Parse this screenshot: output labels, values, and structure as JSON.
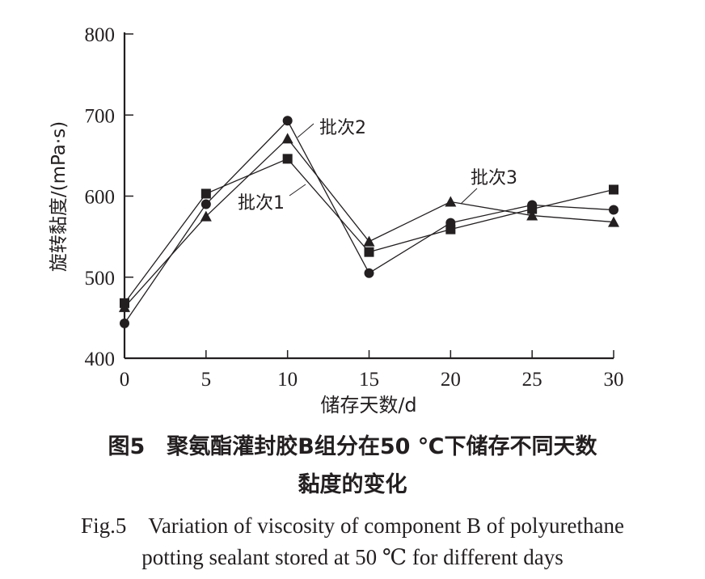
{
  "chart_data": {
    "type": "line",
    "title": "",
    "xlabel": "储存天数/d",
    "ylabel": "旋转黏度/(mPa·s)",
    "xlim": [
      0,
      30
    ],
    "ylim": [
      400,
      800
    ],
    "x_ticks": [
      0,
      5,
      10,
      15,
      20,
      25,
      30
    ],
    "y_ticks": [
      400,
      500,
      600,
      700,
      800
    ],
    "grid": false,
    "x": [
      0,
      5,
      10,
      15,
      20,
      25,
      30
    ],
    "series": [
      {
        "name": "批次1",
        "marker": "square",
        "values": [
          468,
          603,
          646,
          531,
          559,
          584,
          608
        ]
      },
      {
        "name": "批次2",
        "marker": "circle",
        "values": [
          443,
          590,
          693,
          505,
          567,
          589,
          583
        ]
      },
      {
        "name": "批次3",
        "marker": "triangle",
        "values": [
          463,
          575,
          671,
          544,
          593,
          576,
          568
        ]
      }
    ]
  },
  "caption": {
    "cn_line1": "图5　聚氨酯灌封胶B组分在50 ℃下储存不同天数",
    "cn_line2": "黏度的变化",
    "en_line1": "Fig.5　Variation of viscosity of component B of polyurethane",
    "en_line2": "potting sealant stored at 50 ℃ for different days"
  }
}
